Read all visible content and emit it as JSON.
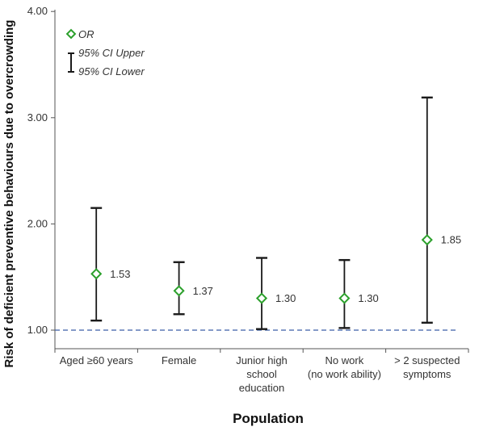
{
  "chart_data": {
    "type": "scatter",
    "xlabel": "Population",
    "ylabel": "Risk of deficient preventive behaviours due to overcrowding",
    "ylim": [
      0.9,
      4.0
    ],
    "yticks": [
      "1.00",
      "2.00",
      "3.00",
      "4.00"
    ],
    "ytick_values": [
      1.0,
      2.0,
      3.0,
      4.0
    ],
    "categories": [
      [
        "Aged ≥60 years"
      ],
      [
        "Female"
      ],
      [
        "Junior high",
        "school",
        "education"
      ],
      [
        "No work",
        "(no work ability)"
      ],
      [
        "> 2 suspected",
        "symptoms"
      ]
    ],
    "series": [
      {
        "name": "OR",
        "values": [
          1.53,
          1.37,
          1.3,
          1.3,
          1.85
        ],
        "labels": [
          "1.53",
          "1.37",
          "1.30",
          "1.30",
          "1.85"
        ]
      },
      {
        "name": "95% CI Upper",
        "values": [
          2.15,
          1.64,
          1.68,
          1.66,
          3.19
        ]
      },
      {
        "name": "95% CI Lower",
        "values": [
          1.09,
          1.15,
          1.01,
          1.02,
          1.07
        ]
      }
    ],
    "reference_line": 1.0,
    "legend_position": "top-left",
    "grid": false
  },
  "colors": {
    "marker": "#2ca02c",
    "errorbar": "#1a1a1a",
    "reference": "#3b5ea8",
    "axis": "#555555"
  }
}
